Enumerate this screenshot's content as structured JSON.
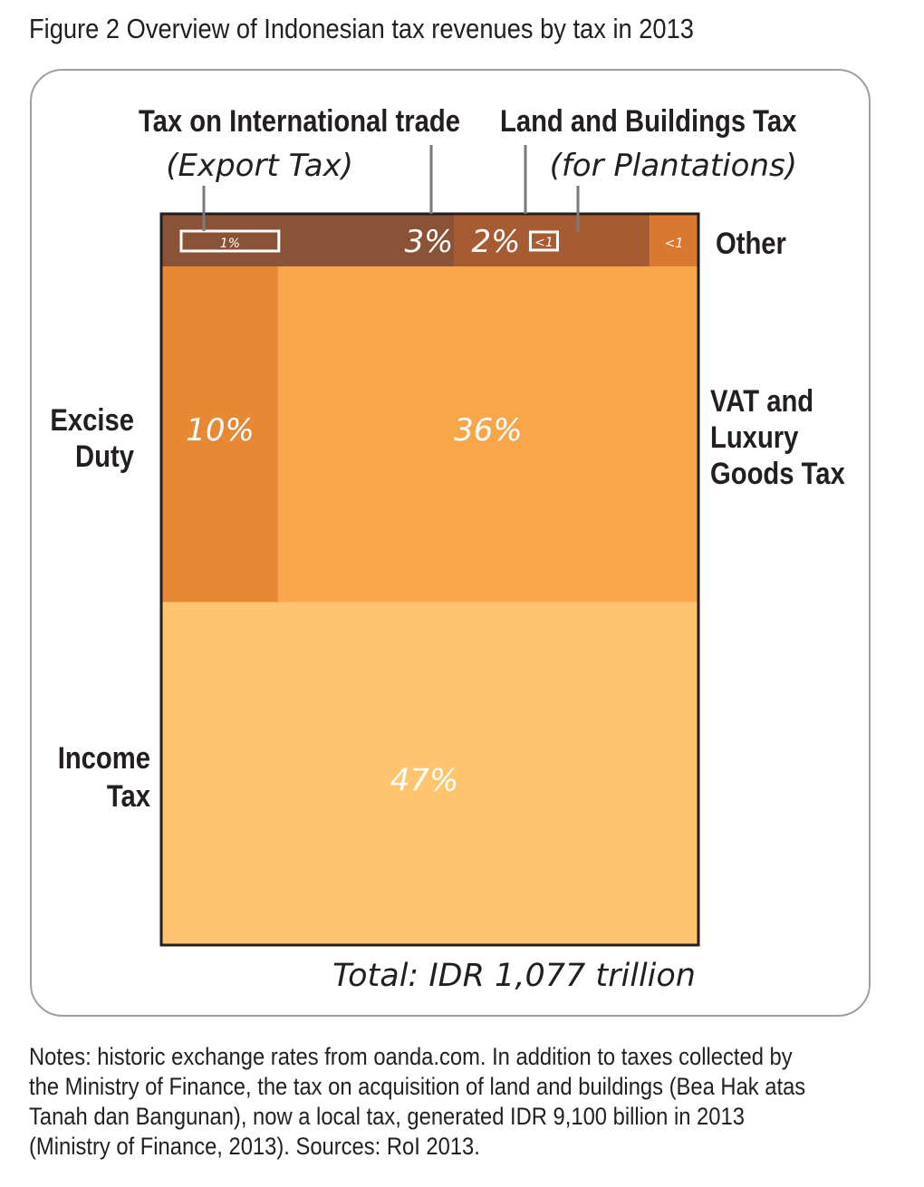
{
  "figure_title": "Figure 2 Overview of Indonesian tax revenues by tax in 2013",
  "notes": "Notes: historic exchange rates from oanda.com. In addition to taxes collected by the Ministry of Finance, the tax on acquisition of land and buildings (Bea Hak atas Tanah dan Bangunan), now a local tax, generated IDR 9,100 billion in 2013 (Ministry of Finance, 2013). Sources: RoI 2013.",
  "colors": {
    "income_tax": "#fec56e",
    "vat": "#f9a54a",
    "excise": "#e68834",
    "intl_trade": "#8a5236",
    "land_buildings": "#a75b32",
    "other": "#d97831",
    "border": "#231f20",
    "frame": "#9d9fa2"
  },
  "chart_data": {
    "type": "treemap",
    "total_label": "Total: IDR 1,077 trillion",
    "segments": [
      {
        "key": "income",
        "label_lines": [
          "Income",
          "Tax"
        ],
        "value_label": "47%",
        "value": 47
      },
      {
        "key": "excise",
        "label_lines": [
          "Excise",
          "Duty"
        ],
        "value_label": "10%",
        "value": 10
      },
      {
        "key": "vat",
        "label_lines": [
          "VAT and",
          "Luxury",
          "Goods Tax"
        ],
        "value_label": "36%",
        "value": 36
      },
      {
        "key": "intl",
        "label_lines": [
          "Tax on International trade"
        ],
        "value_label": "3%",
        "value": 3,
        "sub": {
          "label": "(Export Tax)",
          "value_label": "1%",
          "value": 1
        }
      },
      {
        "key": "land",
        "label_lines": [
          "Land and Buildings Tax"
        ],
        "value_label": "2%",
        "value": 2,
        "sub": {
          "label": "(for Plantations)",
          "value_label": "<1",
          "value": 0.5
        }
      },
      {
        "key": "other",
        "label_lines": [
          "Other"
        ],
        "value_label": "<1",
        "value": 0.5
      }
    ]
  }
}
